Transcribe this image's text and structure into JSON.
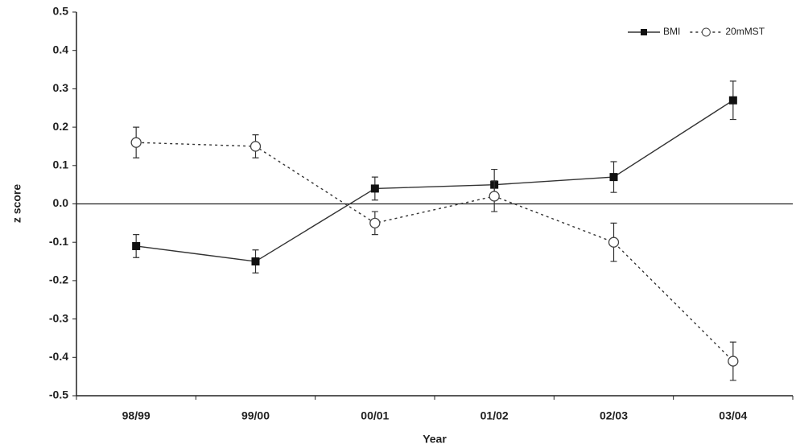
{
  "chart_data": {
    "type": "line",
    "x_label": "Year",
    "y_label": "z score",
    "categories": [
      "98/99",
      "99/00",
      "00/01",
      "01/02",
      "02/03",
      "03/04"
    ],
    "series": [
      {
        "name": "BMI",
        "color": "#333333",
        "line_style": "solid",
        "marker": "square",
        "values": [
          -0.11,
          -0.15,
          0.04,
          0.05,
          0.07,
          0.27
        ],
        "errors": [
          0.03,
          0.03,
          0.03,
          0.04,
          0.04,
          0.05
        ]
      },
      {
        "name": "20mMST",
        "color": "#333333",
        "line_style": "dotted",
        "marker": "circle",
        "values": [
          0.16,
          0.15,
          -0.05,
          0.02,
          -0.1,
          -0.41
        ],
        "errors": [
          0.04,
          0.03,
          0.03,
          0.04,
          0.05,
          0.05
        ]
      }
    ],
    "ylim": [
      -0.5,
      0.5
    ],
    "yticks": [
      -0.5,
      -0.4,
      -0.3,
      -0.2,
      -0.1,
      {
        "value": 0,
        "label": "0.0"
      },
      0.1,
      0.2,
      0.3,
      0.4,
      0.5
    ],
    "zero_line": true,
    "legend": "top-right"
  }
}
